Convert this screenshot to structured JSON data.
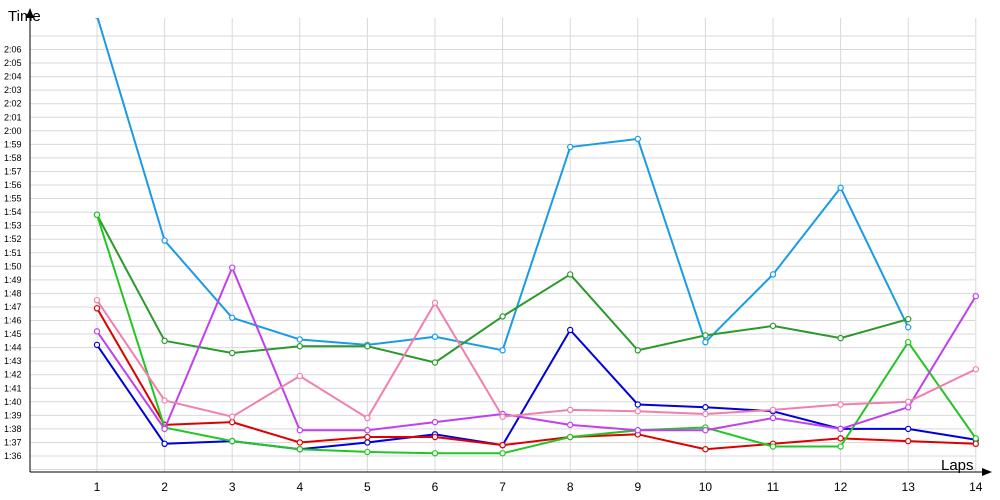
{
  "chart_data": {
    "type": "line",
    "ylabel": "Time",
    "xlabel": "Laps",
    "x": [
      1,
      2,
      3,
      4,
      5,
      6,
      7,
      8,
      9,
      10,
      11,
      12,
      13,
      14
    ],
    "y_ticks": [
      "1:36",
      "1:37",
      "1:38",
      "1:39",
      "1:40",
      "1:41",
      "1:42",
      "1:43",
      "1:44",
      "1:45",
      "1:46",
      "1:47",
      "1:48",
      "1:49",
      "1:50",
      "1:51",
      "1:52",
      "1:53",
      "1:54",
      "1:55",
      "1:56",
      "1:57",
      "1:58",
      "1:59",
      "2:00",
      "2:01",
      "2:02",
      "2:03",
      "2:04",
      "2:05",
      "2:06"
    ],
    "y_unit": "seconds",
    "ylim": [
      95,
      127
    ],
    "grid": true,
    "series": [
      {
        "color": "#1a9be6",
        "values": [
          128.5,
          111.9,
          106.2,
          104.6,
          104.2,
          104.8,
          103.8,
          118.8,
          119.4,
          104.4,
          109.4,
          115.8,
          105.5,
          null
        ]
      },
      {
        "color": "#2b9a2b",
        "values": [
          113.8,
          104.5,
          103.6,
          104.1,
          104.1,
          102.9,
          106.3,
          109.4,
          103.8,
          104.9,
          105.6,
          104.7,
          106.1,
          null
        ]
      },
      {
        "color": "#0000dd",
        "values": [
          104.2,
          96.9,
          97.1,
          96.5,
          97.0,
          97.6,
          96.8,
          105.3,
          99.8,
          99.6,
          99.3,
          98.0,
          98.0,
          97.2
        ]
      },
      {
        "color": "#dd0000",
        "values": [
          106.9,
          98.3,
          98.5,
          97.0,
          97.4,
          97.4,
          96.8,
          97.4,
          97.6,
          96.5,
          96.9,
          97.3,
          97.1,
          96.9
        ]
      },
      {
        "color": "#22c622",
        "values": [
          113.8,
          98.1,
          97.1,
          96.5,
          96.3,
          96.2,
          96.2,
          97.4,
          97.9,
          98.1,
          96.7,
          96.7,
          104.4,
          97.3
        ]
      },
      {
        "color": "#c040ee",
        "values": [
          105.2,
          98.0,
          109.9,
          97.9,
          97.9,
          98.5,
          99.1,
          98.3,
          97.9,
          97.9,
          98.8,
          98.0,
          99.6,
          107.8
        ]
      },
      {
        "color": "#f07fb0",
        "values": [
          107.5,
          100.1,
          98.9,
          101.9,
          98.8,
          107.3,
          98.9,
          99.4,
          99.3,
          99.1,
          99.4,
          99.8,
          100.0,
          102.4
        ]
      }
    ]
  }
}
